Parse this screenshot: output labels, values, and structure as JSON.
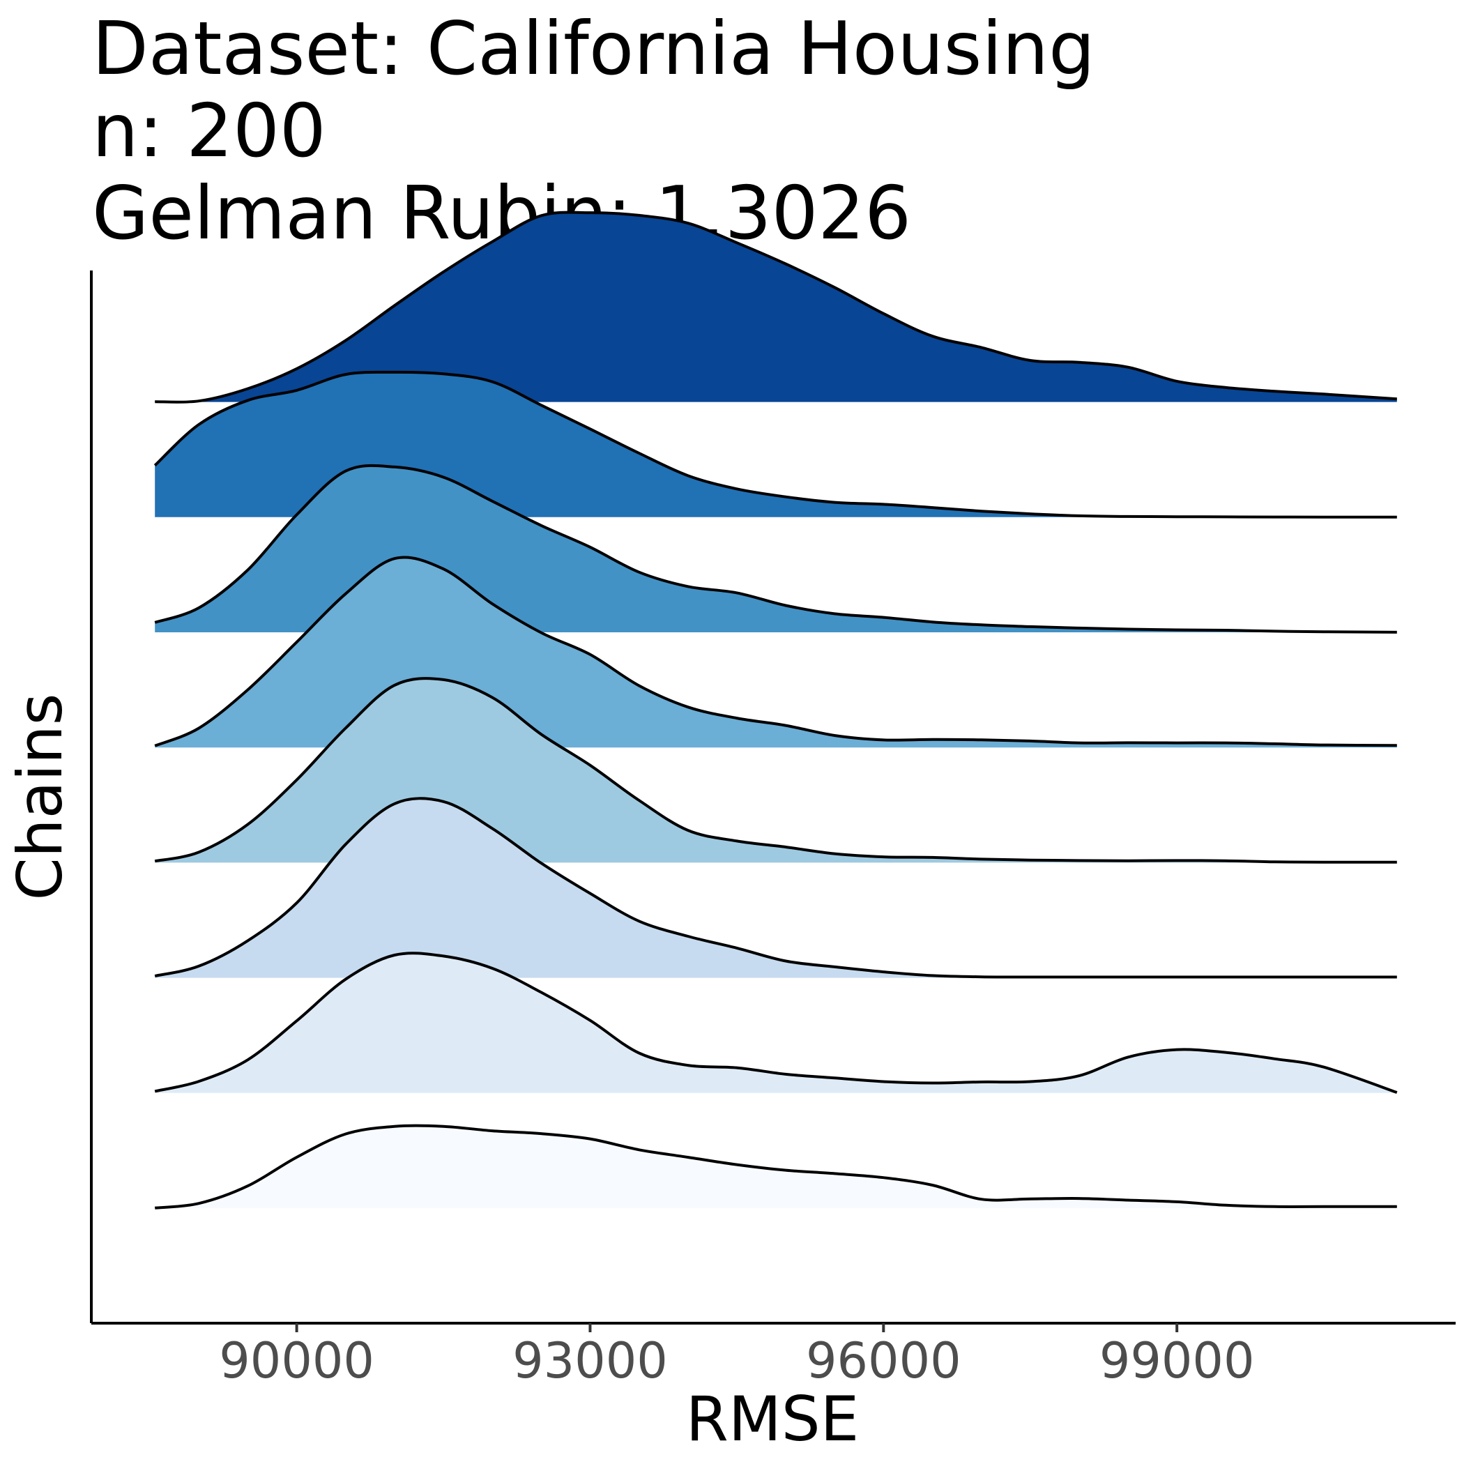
{
  "chart_data": {
    "type": "ridgeline",
    "title_lines": [
      "Dataset: California Housing",
      "n: 200",
      "Gelman Rubin: 1.3026"
    ],
    "xlabel": "RMSE",
    "ylabel": "Chains",
    "xlim": [
      87900,
      101850
    ],
    "x_ticks": [
      90000,
      93000,
      96000,
      99000
    ],
    "x_tick_labels": [
      "90000",
      "93000",
      "96000",
      "99000"
    ],
    "y_tick_labels": [],
    "grid": false,
    "legend": "none",
    "ridge_scale": 2.2,
    "density_max": 0.000505,
    "series": [
      {
        "color": "#f7fbff",
        "points": [
          [
            88550,
            3e-07
          ],
          [
            89000,
            9.5e-06
          ],
          [
            89500,
            4.43e-05
          ],
          [
            90000,
            0.0001015
          ],
          [
            90500,
            0.0001478
          ],
          [
            91000,
            0.000163
          ],
          [
            91500,
            0.000163
          ],
          [
            92000,
            0.0001541
          ],
          [
            92500,
            0.0001485
          ],
          [
            93000,
            0.0001381
          ],
          [
            93500,
            0.0001163
          ],
          [
            94000,
            0.0001015
          ],
          [
            94500,
            8.67e-05
          ],
          [
            95000,
            7.56e-05
          ],
          [
            95500,
            6.89e-05
          ],
          [
            96000,
            6.08e-05
          ],
          [
            96500,
            4.59e-05
          ],
          [
            97000,
            1.78e-05
          ],
          [
            97500,
            1.85e-05
          ],
          [
            98000,
            1.93e-05
          ],
          [
            98500,
            1.6e-05
          ],
          [
            99000,
            1.26e-05
          ],
          [
            99500,
            5.9e-06
          ],
          [
            100000,
            3e-06
          ],
          [
            100500,
            3e-06
          ],
          [
            101250,
            3e-06
          ]
        ]
      },
      {
        "color": "#deebf7",
        "points": [
          [
            88550,
            3.3e-06
          ],
          [
            89000,
            2.32e-05
          ],
          [
            89500,
            6.62e-05
          ],
          [
            90000,
            0.0001438
          ],
          [
            90500,
            0.0002266
          ],
          [
            91000,
            0.0002748
          ],
          [
            91500,
            0.0002729
          ],
          [
            92000,
            0.0002485
          ],
          [
            92500,
            0.0002006
          ],
          [
            93000,
            0.0001446
          ],
          [
            93500,
            7.96e-05
          ],
          [
            94000,
            5.52e-05
          ],
          [
            94500,
            5.03e-05
          ],
          [
            95000,
            3.74e-05
          ],
          [
            95500,
            2.99e-05
          ],
          [
            96000,
            2.26e-05
          ],
          [
            96500,
            1.99e-05
          ],
          [
            97000,
            2.2e-05
          ],
          [
            97500,
            2.26e-05
          ],
          [
            98000,
            3.43e-05
          ],
          [
            98500,
            7.14e-05
          ],
          [
            99000,
            8.64e-05
          ],
          [
            99500,
            8.08e-05
          ],
          [
            100000,
            6.81e-05
          ],
          [
            100500,
            5.17e-05
          ],
          [
            101250,
            1e-06
          ]
        ]
      },
      {
        "color": "#c6dbef",
        "points": [
          [
            88550,
            3.6e-06
          ],
          [
            89000,
            2.33e-05
          ],
          [
            89500,
            7.4e-05
          ],
          [
            90000,
            0.0001493
          ],
          [
            90500,
            0.000266
          ],
          [
            91000,
            0.0003469
          ],
          [
            91500,
            0.0003513
          ],
          [
            92000,
            0.0002976
          ],
          [
            92500,
            0.0002286
          ],
          [
            93000,
            0.0001682
          ],
          [
            93500,
            0.000113
          ],
          [
            94000,
            8.28e-05
          ],
          [
            94500,
            5.93e-05
          ],
          [
            95000,
            3.35e-05
          ],
          [
            95500,
            2.18e-05
          ],
          [
            96000,
            1.18e-05
          ],
          [
            96500,
            4.4e-06
          ],
          [
            97000,
            1.9e-06
          ],
          [
            97500,
            1.5e-06
          ],
          [
            98000,
            1.5e-06
          ],
          [
            98500,
            1.5e-06
          ],
          [
            99000,
            1.5e-06
          ],
          [
            99500,
            1.5e-06
          ],
          [
            100000,
            1.5e-06
          ],
          [
            100500,
            1.5e-06
          ],
          [
            101250,
            1.5e-06
          ]
        ]
      },
      {
        "color": "#9ecae1",
        "points": [
          [
            88550,
            3e-06
          ],
          [
            89000,
            2.08e-05
          ],
          [
            89500,
            7.63e-05
          ],
          [
            90000,
            0.000165
          ],
          [
            90500,
            0.0002681
          ],
          [
            91000,
            0.0003536
          ],
          [
            91500,
            0.0003647
          ],
          [
            92000,
            0.0003292
          ],
          [
            92500,
            0.0002558
          ],
          [
            93000,
            0.0001941
          ],
          [
            93500,
            0.0001242
          ],
          [
            94000,
            6.45e-05
          ],
          [
            94500,
            4.31e-05
          ],
          [
            95000,
            3.11e-05
          ],
          [
            95500,
            1.78e-05
          ],
          [
            96000,
            1.15e-05
          ],
          [
            96500,
            1.04e-05
          ],
          [
            97000,
            7e-06
          ],
          [
            97500,
            5.2e-06
          ],
          [
            98000,
            4.1e-06
          ],
          [
            98500,
            3.7e-06
          ],
          [
            99000,
            4.1e-06
          ],
          [
            99500,
            3.7e-06
          ],
          [
            100000,
            1.5e-06
          ],
          [
            100500,
            1e-06
          ],
          [
            101250,
            1e-06
          ]
        ]
      },
      {
        "color": "#6baed6",
        "points": [
          [
            88550,
            3.3e-06
          ],
          [
            89000,
            3.85e-05
          ],
          [
            89500,
            0.0001151
          ],
          [
            90000,
            0.0002099
          ],
          [
            90500,
            0.0003062
          ],
          [
            91000,
            0.0003765
          ],
          [
            91500,
            0.0003558
          ],
          [
            92000,
            0.0002863
          ],
          [
            92500,
            0.0002288
          ],
          [
            93000,
            0.0001853
          ],
          [
            93500,
            0.0001233
          ],
          [
            94000,
            8.06e-05
          ],
          [
            94500,
            5.85e-05
          ],
          [
            95000,
            4.39e-05
          ],
          [
            95500,
            2.39e-05
          ],
          [
            96000,
            1.5e-05
          ],
          [
            96500,
            1.59e-05
          ],
          [
            97000,
            1.51e-05
          ],
          [
            97500,
            1.29e-05
          ],
          [
            98000,
            9.2e-06
          ],
          [
            98500,
            9.5e-06
          ],
          [
            99000,
            9.2e-06
          ],
          [
            99500,
            9.2e-06
          ],
          [
            100000,
            7.4e-06
          ],
          [
            100500,
            5e-06
          ],
          [
            101250,
            4e-06
          ]
        ]
      },
      {
        "color": "#4292c6",
        "points": [
          [
            88550,
            1.96e-05
          ],
          [
            89000,
            4.88e-05
          ],
          [
            89500,
            0.0001244
          ],
          [
            90000,
            0.0002343
          ],
          [
            90500,
            0.0003214
          ],
          [
            91000,
            0.0003296
          ],
          [
            91500,
            0.0003092
          ],
          [
            92000,
            0.0002613
          ],
          [
            92500,
            0.0002129
          ],
          [
            93000,
            0.0001698
          ],
          [
            93500,
            0.0001199
          ],
          [
            94000,
            9.13e-05
          ],
          [
            94500,
            7.87e-05
          ],
          [
            95000,
            5.35e-05
          ],
          [
            95500,
            3.7e-05
          ],
          [
            96000,
            2.98e-05
          ],
          [
            96500,
            2.05e-05
          ],
          [
            97000,
            1.48e-05
          ],
          [
            97500,
            1.13e-05
          ],
          [
            98000,
            8.5e-06
          ],
          [
            98500,
            6.3e-06
          ],
          [
            99000,
            4.8e-06
          ],
          [
            99500,
            4.1e-06
          ],
          [
            100000,
            2.2e-06
          ],
          [
            100500,
            1.1e-06
          ],
          [
            101250,
            1e-07
          ]
        ]
      },
      {
        "color": "#2171b5",
        "points": [
          [
            88550,
            0.0001031
          ],
          [
            89000,
            0.0001847
          ],
          [
            89500,
            0.0002328
          ],
          [
            90000,
            0.0002527
          ],
          [
            90500,
            0.0002845
          ],
          [
            91000,
            0.0002889
          ],
          [
            91500,
            0.0002856
          ],
          [
            92000,
            0.0002699
          ],
          [
            92500,
            0.0002232
          ],
          [
            93000,
            0.0001758
          ],
          [
            93500,
            0.0001275
          ],
          [
            94000,
            8.28e-05
          ],
          [
            94500,
            5.63e-05
          ],
          [
            95000,
            4.05e-05
          ],
          [
            95500,
            2.94e-05
          ],
          [
            96000,
            2.55e-05
          ],
          [
            96500,
            1.91e-05
          ],
          [
            97000,
            1.2e-05
          ],
          [
            97500,
            6.5e-06
          ],
          [
            98000,
            2.6e-06
          ],
          [
            98500,
            1.2e-06
          ],
          [
            99000,
            9e-07
          ],
          [
            99500,
            6e-07
          ],
          [
            100000,
            3e-07
          ],
          [
            100500,
            2e-07
          ],
          [
            101250,
            1e-07
          ]
        ]
      },
      {
        "color": "#084594",
        "points": [
          [
            88550,
            6e-07
          ],
          [
            89000,
            1.9e-06
          ],
          [
            89500,
            2.65e-05
          ],
          [
            90000,
            6.63e-05
          ],
          [
            90500,
            0.0001225
          ],
          [
            91000,
            0.0001921
          ],
          [
            91500,
            0.0002592
          ],
          [
            92000,
            0.0003195
          ],
          [
            92500,
            0.0003714
          ],
          [
            93000,
            0.0003773
          ],
          [
            93500,
            0.0003719
          ],
          [
            94000,
            0.0003564
          ],
          [
            94500,
            0.0003174
          ],
          [
            95000,
            0.0002752
          ],
          [
            95500,
            0.0002283
          ],
          [
            96000,
            0.0001762
          ],
          [
            96500,
            0.0001311
          ],
          [
            97000,
            0.0001087
          ],
          [
            97500,
            8.28e-05
          ],
          [
            98000,
            7.91e-05
          ],
          [
            98500,
            6.93e-05
          ],
          [
            99000,
            4.13e-05
          ],
          [
            99500,
            2.87e-05
          ],
          [
            100000,
            2.13e-05
          ],
          [
            100500,
            1.57e-05
          ],
          [
            101250,
            6e-06
          ]
        ]
      }
    ]
  }
}
